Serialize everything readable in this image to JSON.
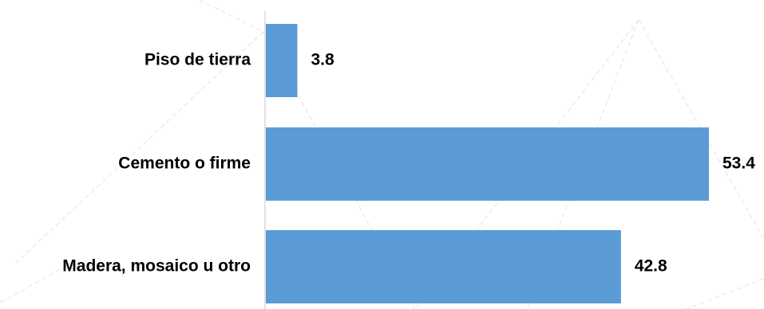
{
  "chart_data": {
    "type": "bar",
    "orientation": "horizontal",
    "categories": [
      "Piso de tierra",
      "Cemento o firme",
      "Madera, mosaico u otro"
    ],
    "values": [
      3.8,
      53.4,
      42.8
    ],
    "data_labels": [
      "3.8",
      "53.4",
      "42.8"
    ],
    "bar_color": "#5b9bd5",
    "axis_color": "#d9d9d9",
    "xlim": [
      0,
      55
    ],
    "grid": false,
    "legend": "none"
  }
}
